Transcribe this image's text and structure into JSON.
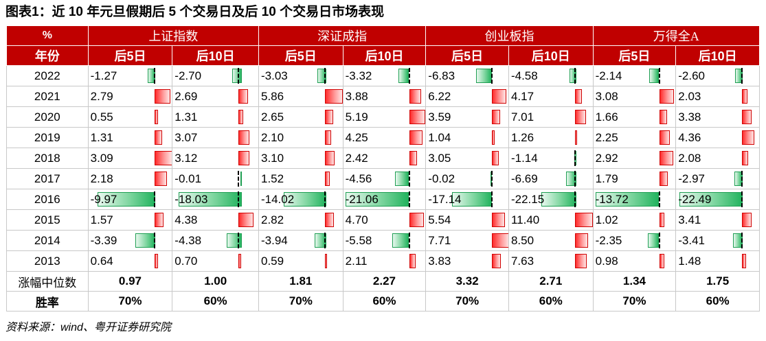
{
  "title": "图表1：近 10 年元旦假期后 5 个交易日及后 10 个交易日市场表现",
  "source": "资料来源：wind、粤开证券研究院",
  "chart_data": {
    "type": "table",
    "corner_header": "%",
    "year_header": "年份",
    "groups": [
      "上证指数",
      "深证成指",
      "创业板指",
      "万得全A"
    ],
    "subheaders": [
      "后5日",
      "后10日"
    ],
    "years": [
      "2022",
      "2021",
      "2020",
      "2019",
      "2018",
      "2017",
      "2016",
      "2015",
      "2014",
      "2013"
    ],
    "values": [
      [
        "-1.27",
        "-2.70",
        "-3.03",
        "-3.32",
        "-6.83",
        "-4.58",
        "-2.14",
        "-2.60"
      ],
      [
        "2.79",
        "2.69",
        "5.86",
        "3.88",
        "6.22",
        "4.17",
        "3.08",
        "2.03"
      ],
      [
        "0.55",
        "1.31",
        "2.65",
        "5.19",
        "3.59",
        "7.01",
        "1.66",
        "3.38"
      ],
      [
        "1.31",
        "3.07",
        "2.10",
        "4.25",
        "1.04",
        "1.26",
        "2.25",
        "4.36"
      ],
      [
        "3.09",
        "3.12",
        "3.10",
        "2.42",
        "3.05",
        "-1.14",
        "2.92",
        "2.08"
      ],
      [
        "2.18",
        "-0.01",
        "1.52",
        "-4.56",
        "-0.02",
        "-6.69",
        "1.79",
        "-2.97"
      ],
      [
        "-9.97",
        "-18.03",
        "-14.02",
        "-21.06",
        "-17.14",
        "-22.15",
        "-13.72",
        "-22.49"
      ],
      [
        "1.57",
        "4.38",
        "2.82",
        "4.70",
        "5.54",
        "11.40",
        "1.02",
        "3.41"
      ],
      [
        "-3.39",
        "-4.38",
        "-3.94",
        "-5.58",
        "7.71",
        "8.50",
        "-2.35",
        "-3.41"
      ],
      [
        "0.64",
        "0.70",
        "0.59",
        "2.11",
        "3.83",
        "7.63",
        "0.98",
        "1.48"
      ]
    ],
    "median_label": "涨幅中位数",
    "medians": [
      "0.97",
      "1.00",
      "1.81",
      "2.27",
      "3.32",
      "2.71",
      "1.34",
      "1.75"
    ],
    "winrate_label": "胜率",
    "winrates": [
      "70%",
      "60%",
      "70%",
      "60%",
      "70%",
      "60%",
      "70%",
      "60%"
    ],
    "colors": {
      "header": "#c00000",
      "positive": "#ff2b2b",
      "negative": "#22b35e"
    }
  }
}
